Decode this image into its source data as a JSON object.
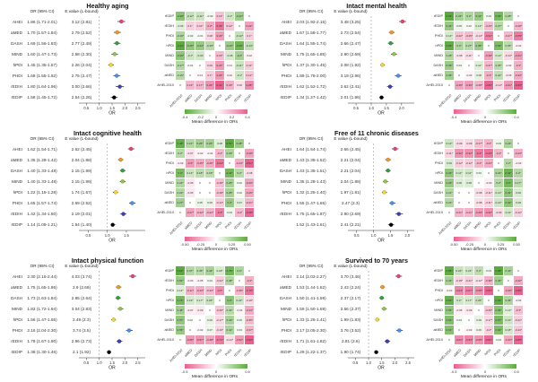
{
  "shared": {
    "col_headers": [
      "OR (95% CI)",
      "E value (L-bound)"
    ],
    "or_axis_label": "OR",
    "heatmap_xlabel": "Mean difference in ORs",
    "heatmap_row_labels": [
      "rEDIP",
      "rEDIH",
      "PHDI",
      "hPDI",
      "MIND",
      "DASH",
      "aMED",
      "AHEI-2010"
    ],
    "heatmap_col_labels": [
      "AHEI-2010",
      "aMED",
      "DASH",
      "MIND",
      "hPDI",
      "PHDI",
      "rEDIH",
      "rEDIP"
    ],
    "index_colors": {
      "AHEI": "#E8436F",
      "aMED": "#F5941F",
      "DASH": "#2E9E3E",
      "MIND": "#8CC63F",
      "hPDI": "#F5D327",
      "PHDI": "#4292F5",
      "rEDIH": "#3D3DC8",
      "rEDIP": "#000000"
    },
    "heatmap_green": "#5BAB3C",
    "heatmap_pink": "#E9608C"
  },
  "chart_data": {
    "type": "forest+heatmap",
    "panels": [
      {
        "title": "Healthy aging",
        "rows": [
          {
            "label": "AHEI",
            "or_ci": "1.86 (1.71-2.01)",
            "e_value": "3.12 (2.81)",
            "or": 1.86,
            "lo": 1.71,
            "hi": 2.01,
            "color": "#E8436F"
          },
          {
            "label": "aMED",
            "or_ci": "1.70 (1.57-1.84)",
            "e_value": "2.79 (2.52)",
            "or": 1.7,
            "lo": 1.57,
            "hi": 1.84,
            "color": "#F5941F"
          },
          {
            "label": "DASH",
            "or_ci": "1.69 (1.56-1.83)",
            "e_value": "2.77 (2.49)",
            "or": 1.69,
            "lo": 1.56,
            "hi": 1.83,
            "color": "#2E9E3E"
          },
          {
            "label": "MIND",
            "or_ci": "1.60 (1.47-1.73)",
            "e_value": "2.58 (2.30)",
            "or": 1.6,
            "lo": 1.47,
            "hi": 1.73,
            "color": "#8CC63F"
          },
          {
            "label": "hPDI",
            "or_ci": "1.45 (1.35-1.57)",
            "e_value": "2.26 (2.04)",
            "or": 1.45,
            "lo": 1.35,
            "hi": 1.57,
            "color": "#F5D327"
          },
          {
            "label": "PHDI",
            "or_ci": "1.68 (1.55-1.82)",
            "e_value": "2.75 (2.47)",
            "or": 1.68,
            "lo": 1.55,
            "hi": 1.82,
            "color": "#4292F5"
          },
          {
            "label": "rEDIH",
            "or_ci": "1.80 (1.64-1.96)",
            "e_value": "3.00 (2.66)",
            "or": 1.8,
            "lo": 1.64,
            "hi": 1.96,
            "color": "#3D3DC8"
          },
          {
            "label": "rEDIP",
            "or_ci": "1.58 (1.45-1.72)",
            "e_value": "2.54 (2.26)",
            "or": 1.58,
            "lo": 1.45,
            "hi": 1.72,
            "color": "#000000"
          }
        ],
        "axis": {
          "ticks": [
            "0.5",
            "1.0",
            "1.5",
            "2.0",
            "2.5"
          ],
          "min": 0.35,
          "max": 2.65
        },
        "heatmap": {
          "value": "row-col",
          "neg": "#5BAB3C",
          "pos": "#E9608C",
          "scale": 0.41,
          "legend_ticks": [
            "-0.4",
            "-0.2",
            "0",
            "0.2",
            "0.4"
          ]
        }
      },
      {
        "title": "Intact mental health",
        "rows": [
          {
            "label": "AHEI",
            "or_ci": "2.03 (1.92-2.15)",
            "e_value": "3.48 (3.25)",
            "or": 2.03,
            "lo": 1.92,
            "hi": 2.15,
            "color": "#E8436F"
          },
          {
            "label": "aMED",
            "or_ci": "1.67 (1.58-1.77)",
            "e_value": "2.73 (2.54)",
            "or": 1.67,
            "lo": 1.58,
            "hi": 1.77,
            "color": "#F5941F"
          },
          {
            "label": "DASH",
            "or_ci": "1.64 (1.55-1.74)",
            "e_value": "2.66 (2.47)",
            "or": 1.64,
            "lo": 1.55,
            "hi": 1.74,
            "color": "#2E9E3E"
          },
          {
            "label": "MIND",
            "or_ci": "1.75 (1.65-1.85)",
            "e_value": "2.90 (2.69)",
            "or": 1.75,
            "lo": 1.65,
            "hi": 1.85,
            "color": "#8CC63F"
          },
          {
            "label": "hPDI",
            "or_ci": "1.37 (1.30-1.45)",
            "e_value": "2.08 (1.92)",
            "or": 1.37,
            "lo": 1.3,
            "hi": 1.45,
            "color": "#F5D327"
          },
          {
            "label": "PHDI",
            "or_ci": "1.89 (1.78-2.00)",
            "e_value": "3.19 (2.96)",
            "or": 1.89,
            "lo": 1.78,
            "hi": 2.0,
            "color": "#4292F5"
          },
          {
            "label": "rEDIH",
            "or_ci": "1.62 (1.52-1.72)",
            "e_value": "2.62 (2.41)",
            "or": 1.62,
            "lo": 1.52,
            "hi": 1.72,
            "color": "#3D3DC8"
          },
          {
            "label": "rEDIP",
            "or_ci": "1.34 (1.27-1.42)",
            "e_value": "2.01 (1.86)",
            "or": 1.34,
            "lo": 1.27,
            "hi": 1.42,
            "color": "#000000"
          }
        ],
        "axis": {
          "ticks": [
            "0.5",
            "1.0",
            "1.5",
            "2.0"
          ],
          "min": 0.35,
          "max": 2.3
        },
        "heatmap": {
          "value": "col-row",
          "neg": "#E9608C",
          "pos": "#5BAB3C",
          "scale": 0.69,
          "legend_ticks": [
            "-0.4",
            "0",
            "0.4"
          ]
        }
      },
      {
        "title": "Intact cognitive health",
        "rows": [
          {
            "label": "AHEI",
            "or_ci": "1.62 (1.54-1.71)",
            "e_value": "2.62 (2.45)",
            "or": 1.62,
            "lo": 1.54,
            "hi": 1.71,
            "color": "#E8436F"
          },
          {
            "label": "aMED",
            "or_ci": "1.35 (1.28-1.42)",
            "e_value": "2.04 (1.88)",
            "or": 1.35,
            "lo": 1.28,
            "hi": 1.42,
            "color": "#F5941F"
          },
          {
            "label": "DASH",
            "or_ci": "1.40 (1.33-1.48)",
            "e_value": "2.15 (1.99)",
            "or": 1.4,
            "lo": 1.33,
            "hi": 1.48,
            "color": "#2E9E3E"
          },
          {
            "label": "MIND",
            "or_ci": "1.40 (1.33-1.48)",
            "e_value": "2.15 (1.99)",
            "or": 1.4,
            "lo": 1.33,
            "hi": 1.48,
            "color": "#8CC63F"
          },
          {
            "label": "hPDI",
            "or_ci": "1.22 (1.15-1.28)",
            "e_value": "1.74 (1.57)",
            "or": 1.22,
            "lo": 1.15,
            "hi": 1.28,
            "color": "#F5D327"
          },
          {
            "label": "PHDI",
            "or_ci": "1.65 (1.57-1.74)",
            "e_value": "2.69 (2.52)",
            "or": 1.65,
            "lo": 1.57,
            "hi": 1.74,
            "color": "#4292F5"
          },
          {
            "label": "rEDIH",
            "or_ci": "1.42 (1.34-1.50)",
            "e_value": "2.19 (2.01)",
            "or": 1.42,
            "lo": 1.34,
            "hi": 1.5,
            "color": "#3D3DC8"
          },
          {
            "label": "rEDIP",
            "or_ci": "1.14 (1.09-1.21)",
            "e_value": "1.54 (1.40)",
            "or": 1.14,
            "lo": 1.09,
            "hi": 1.21,
            "color": "#000000"
          }
        ],
        "axis": {
          "ticks": [
            "0.5",
            "1.0",
            "1.5"
          ],
          "min": 0.35,
          "max": 1.9
        },
        "heatmap": {
          "value": "col-row",
          "neg": "#E9608C",
          "pos": "#5BAB3C",
          "scale": 0.52,
          "legend_ticks": [
            "-0.50",
            "-0.25",
            "0",
            "0.25",
            "0.50"
          ]
        }
      },
      {
        "title": "Free of 11 chronic diseases",
        "rows": [
          {
            "label": "AHEI",
            "or_ci": "1.64 (1.54-1.74)",
            "e_value": "2.66 (2.45)",
            "or": 1.64,
            "lo": 1.54,
            "hi": 1.74,
            "color": "#E8436F"
          },
          {
            "label": "aMED",
            "or_ci": "1.43 (1.35-1.52)",
            "e_value": "2.21 (2.04)",
            "or": 1.43,
            "lo": 1.35,
            "hi": 1.52,
            "color": "#F5941F"
          },
          {
            "label": "DASH",
            "or_ci": "1.43 (1.35-1.51)",
            "e_value": "2.21 (2.04)",
            "or": 1.43,
            "lo": 1.35,
            "hi": 1.51,
            "color": "#2E9E3E"
          },
          {
            "label": "MIND",
            "or_ci": "1.35 (1.28-1.43)",
            "e_value": "2.04 (1.88)",
            "or": 1.35,
            "lo": 1.28,
            "hi": 1.43,
            "color": "#8CC63F"
          },
          {
            "label": "hPDI",
            "or_ci": "1.32 (1.25-1.40)",
            "e_value": "1.97 (1.81)",
            "or": 1.32,
            "lo": 1.25,
            "hi": 1.4,
            "color": "#F5D327"
          },
          {
            "label": "PHDI",
            "or_ci": "1.55 (1.47-1.65)",
            "e_value": "2.47 (2.3)",
            "or": 1.55,
            "lo": 1.47,
            "hi": 1.65,
            "color": "#4292F5"
          },
          {
            "label": "rEDIH",
            "or_ci": "1.75 (1.65-1.87)",
            "e_value": "2.90 (2.69)",
            "or": 1.75,
            "lo": 1.65,
            "hi": 1.87,
            "color": "#3D3DC8"
          },
          {
            "label": "",
            "or_ci": "1.52 (1.43-1.61)",
            "e_value": "2.41 (2.21)",
            "or": 1.52,
            "lo": 1.43,
            "hi": 1.61,
            "color": "#000000"
          }
        ],
        "axis": {
          "ticks": [
            "0.5",
            "1.0",
            "1.5",
            "2.0"
          ],
          "min": 0.35,
          "max": 2.1
        },
        "heatmap": {
          "value": "col-row",
          "neg": "#E9608C",
          "pos": "#5BAB3C",
          "scale": 0.5,
          "legend_ticks": [
            "-0.50",
            "-0.25",
            "0",
            "0.25",
            "0.50"
          ]
        }
      },
      {
        "title": "Intact physical function",
        "rows": [
          {
            "label": "AHEI",
            "or_ci": "2.30 (2.16-2.44)",
            "e_value": "4.03 (3.74)",
            "or": 2.3,
            "lo": 2.16,
            "hi": 2.44,
            "color": "#E8436F"
          },
          {
            "label": "aMED",
            "or_ci": "1.75 (1.65-1.86)",
            "e_value": "2.9 (2.69)",
            "or": 1.75,
            "lo": 1.65,
            "hi": 1.86,
            "color": "#F5941F"
          },
          {
            "label": "DASH",
            "or_ci": "1.73 (1.63-1.84)",
            "e_value": "2.85 (2.64)",
            "or": 1.73,
            "lo": 1.63,
            "hi": 1.84,
            "color": "#2E9E3E"
          },
          {
            "label": "MIND",
            "or_ci": "1.82 (1.72-1.94)",
            "e_value": "3.04 (2.83)",
            "or": 1.82,
            "lo": 1.72,
            "hi": 1.94,
            "color": "#8CC63F"
          },
          {
            "label": "hPDI",
            "or_ci": "1.56 (1.47-1.65)",
            "e_value": "2.49 (2.3)",
            "or": 1.56,
            "lo": 1.47,
            "hi": 1.65,
            "color": "#F5D327"
          },
          {
            "label": "PHDI",
            "or_ci": "2.16 (2.04-2.30)",
            "e_value": "3.74 (3.5)",
            "or": 2.16,
            "lo": 2.04,
            "hi": 2.3,
            "color": "#4292F5"
          },
          {
            "label": "rEDIH",
            "or_ci": "1.78 (1.67-1.90)",
            "e_value": "2.96 (2.73)",
            "or": 1.78,
            "lo": 1.67,
            "hi": 1.9,
            "color": "#3D3DC8"
          },
          {
            "label": "rEDIP",
            "or_ci": "1.38 (1.30-1.46)",
            "e_value": "2.1 (1.92)",
            "or": 1.38,
            "lo": 1.3,
            "hi": 1.46,
            "color": "#000000"
          }
        ],
        "axis": {
          "ticks": [
            "0.5",
            "1.0",
            "1.5",
            "2.0",
            "2.5"
          ],
          "min": 0.35,
          "max": 2.65
        },
        "heatmap": {
          "value": "col-row",
          "neg": "#E9608C",
          "pos": "#5BAB3C",
          "scale": 0.92,
          "legend_ticks": [
            "-0.5",
            "0",
            "0.5"
          ]
        }
      },
      {
        "title": "Survived to 70 years",
        "rows": [
          {
            "label": "AHEI",
            "or_ci": "2.14 (2.02-2.27)",
            "e_value": "3.70 (3.46)",
            "or": 2.14,
            "lo": 2.02,
            "hi": 2.27,
            "color": "#E8436F"
          },
          {
            "label": "aMED",
            "or_ci": "1.53 (1.44-1.62)",
            "e_value": "2.43 (2.24)",
            "or": 1.53,
            "lo": 1.44,
            "hi": 1.62,
            "color": "#F5941F"
          },
          {
            "label": "DASH",
            "or_ci": "1.50 (1.41-1.59)",
            "e_value": "2.37 (2.17)",
            "or": 1.5,
            "lo": 1.41,
            "hi": 1.59,
            "color": "#2E9E3E"
          },
          {
            "label": "MIND",
            "or_ci": "1.59 (1.50-1.69)",
            "e_value": "2.56 (2.37)",
            "or": 1.59,
            "lo": 1.5,
            "hi": 1.69,
            "color": "#8CC63F"
          },
          {
            "label": "hPDI",
            "or_ci": "1.33 (1.26-1.41)",
            "e_value": "1.99 (1.83)",
            "or": 1.33,
            "lo": 1.26,
            "hi": 1.41,
            "color": "#F5D327"
          },
          {
            "label": "PHDI",
            "or_ci": "2.17 (2.05-2.30)",
            "e_value": "3.76 (3.52)",
            "or": 2.17,
            "lo": 2.05,
            "hi": 2.3,
            "color": "#4292F5"
          },
          {
            "label": "rEDIH",
            "or_ci": "1.71 (1.61-1.82)",
            "e_value": "2.81 (2.6)",
            "or": 1.71,
            "lo": 1.61,
            "hi": 1.82,
            "color": "#3D3DC8"
          },
          {
            "label": "rEDIP",
            "or_ci": "1.29 (1.22-1.37)",
            "e_value": "1.90 (1.74)",
            "or": 1.29,
            "lo": 1.22,
            "hi": 1.37,
            "color": "#000000"
          }
        ],
        "axis": {
          "ticks": [
            "0.5",
            "1.0",
            "1.5",
            "2.0",
            "2.5"
          ],
          "min": 0.35,
          "max": 2.6
        },
        "heatmap": {
          "value": "col-row",
          "neg": "#E9608C",
          "pos": "#5BAB3C",
          "scale": 0.88,
          "legend_ticks": [
            "-0.5",
            "0",
            "0.5"
          ]
        }
      }
    ]
  }
}
